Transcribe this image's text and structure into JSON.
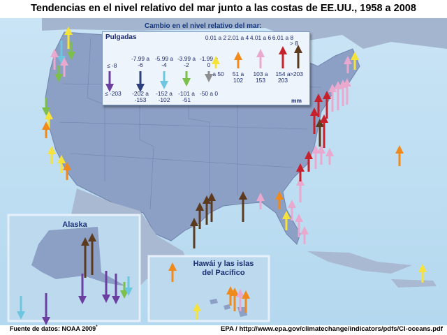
{
  "title": "Tendencias en el nivel relativo del mar junto a las costas de EE.UU., 1958 a 2008",
  "legend": {
    "subtitle": "Cambio en el nivel relativo del mar:",
    "inches_label": "Pulgadas",
    "mm_label": "mm",
    "falling": [
      {
        "inches": "≤ -8",
        "mm": "≤ -203",
        "color": "#6b3fa0"
      },
      {
        "inches": "-7.99 a -6",
        "mm": "-202 a -153",
        "color": "#2d3e7c"
      },
      {
        "inches": "-5.99 a -4",
        "mm": "-152 a -102",
        "color": "#6cc6e0"
      },
      {
        "inches": "-3.99 a -2",
        "mm": "-101 a -51",
        "color": "#7cbf4a"
      },
      {
        "inches": "-1.99 a 0",
        "mm": "-50 a 0",
        "color": "#8f8f8f"
      }
    ],
    "rising": [
      {
        "inches": "0.01 a 2",
        "mm": "1 a 50",
        "color": "#f5e33c"
      },
      {
        "inches": "2.01 a 4",
        "mm": "51 a 102",
        "color": "#f08a1c"
      },
      {
        "inches": "4.01 a 6",
        "mm": "103 a 153",
        "color": "#e9a9cf"
      },
      {
        "inches": "6.01 a 8",
        "mm": "154 a 203",
        "color": "#c8202a"
      },
      {
        "inches": "> 8",
        "mm": ">203",
        "color": "#5b3a1d"
      }
    ]
  },
  "insets": {
    "alaska": "Alaska",
    "hawaii_line1": "Hawái y las islas",
    "hawaii_line2": "del Pacífico"
  },
  "source": "Fuente de datos: NOAA 2009",
  "source_mark": "*",
  "credit": "EPA / http://www.epa.gov/climatechange/indicators/pdfs/CI-oceans.pdf"
}
